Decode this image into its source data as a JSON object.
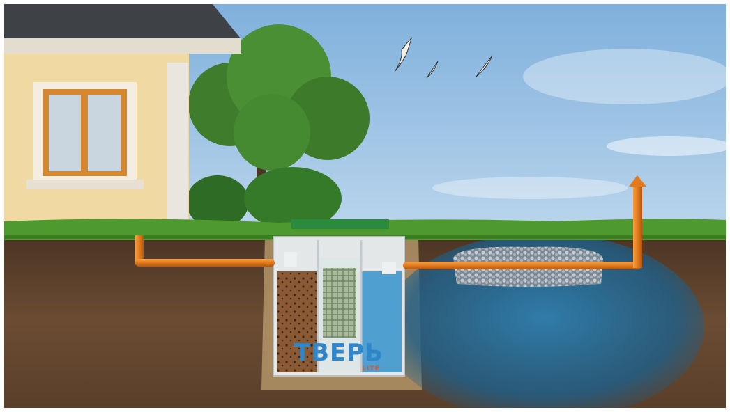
{
  "logo": {
    "brand": "ТВЕРЬ",
    "model": "LITE"
  }
}
